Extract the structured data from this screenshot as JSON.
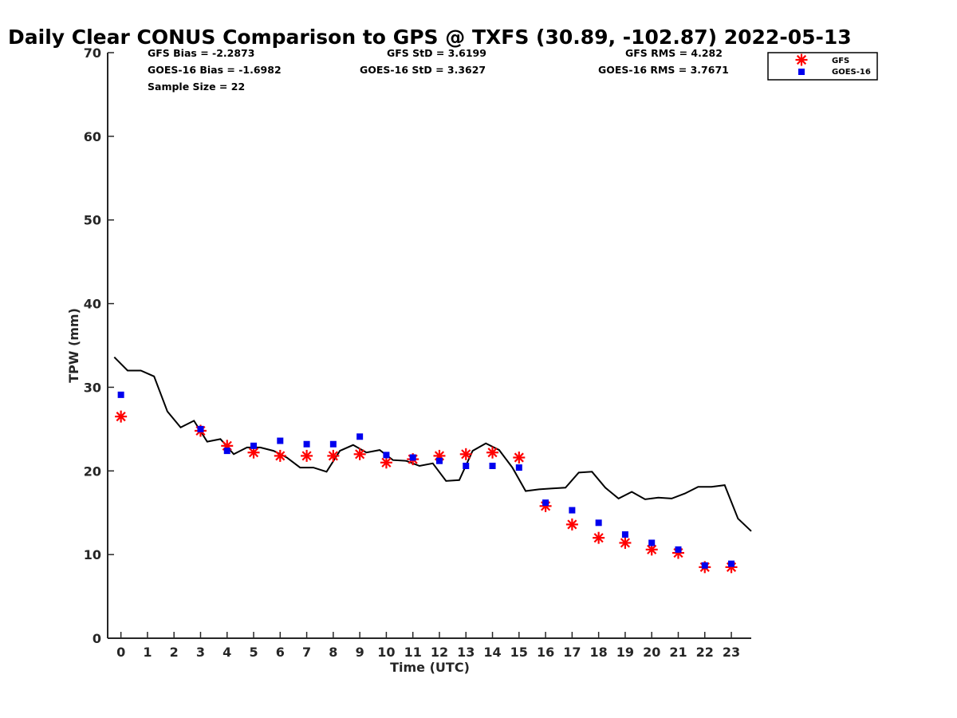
{
  "chart_data": {
    "type": "scatter",
    "title": "Daily Clear CONUS Comparison to GPS @ TXFS (30.89, -102.87) 2022-05-13",
    "xlabel": "Time (UTC)",
    "ylabel": "TPW (mm)",
    "xlim": [
      -0.5,
      23.75
    ],
    "ylim": [
      0,
      70
    ],
    "x_ticks": [
      0,
      1,
      2,
      3,
      4,
      5,
      6,
      7,
      8,
      9,
      10,
      11,
      12,
      13,
      14,
      15,
      16,
      17,
      18,
      19,
      20,
      21,
      22,
      23
    ],
    "y_ticks": [
      0,
      10,
      20,
      30,
      40,
      50,
      60,
      70
    ],
    "grid": false,
    "legend_position": "top-right",
    "stats": {
      "gfs_bias": "GFS Bias = -2.2873",
      "goes_bias": "GOES-16 Bias = -1.6982",
      "sample_size": "Sample Size = 22",
      "gfs_std": "GFS StD = 3.6199",
      "goes_std": "GOES-16 StD = 3.3627",
      "gfs_rms": "GFS RMS = 4.282",
      "goes_rms": "GOES-16 RMS = 3.7671"
    },
    "series": [
      {
        "name": "GFS",
        "marker": "asterisk",
        "color": "#ff0000",
        "x": [
          0,
          3,
          4,
          5,
          6,
          7,
          8,
          9,
          10,
          11,
          12,
          13,
          14,
          15,
          16,
          17,
          18,
          19,
          20,
          21,
          22,
          23
        ],
        "y": [
          26.5,
          24.8,
          23.0,
          22.2,
          21.8,
          21.8,
          21.8,
          22.0,
          21.0,
          21.4,
          21.8,
          22.0,
          22.2,
          21.6,
          15.8,
          13.6,
          12.0,
          11.4,
          10.6,
          10.2,
          8.5,
          8.5
        ]
      },
      {
        "name": "GOES-16",
        "marker": "square",
        "color": "#0000ee",
        "x": [
          0,
          3,
          4,
          5,
          6,
          7,
          8,
          9,
          10,
          11,
          12,
          13,
          14,
          15,
          16,
          17,
          18,
          19,
          20,
          21,
          22,
          23
        ],
        "y": [
          29.1,
          25.0,
          22.4,
          23.0,
          23.6,
          23.2,
          23.2,
          24.1,
          21.9,
          21.6,
          21.2,
          20.6,
          20.6,
          20.4,
          16.2,
          15.3,
          13.8,
          12.4,
          11.4,
          10.6,
          8.7,
          8.9
        ]
      },
      {
        "name": "GPS",
        "marker": "line",
        "color": "#000000",
        "x": [
          -0.25,
          0.25,
          0.75,
          1.25,
          1.75,
          2.25,
          2.75,
          3.25,
          3.75,
          4.25,
          4.75,
          5.25,
          5.75,
          6.25,
          6.75,
          7.25,
          7.75,
          8.25,
          8.75,
          9.25,
          9.75,
          10.25,
          10.75,
          11.25,
          11.75,
          12.25,
          12.75,
          13.25,
          13.75,
          14.25,
          14.75,
          15.25,
          15.75,
          16.25,
          16.75,
          17.25,
          17.75,
          18.25,
          18.75,
          19.25,
          19.75,
          20.25,
          20.75,
          21.25,
          21.75,
          22.25,
          22.75,
          23.25,
          23.75
        ],
        "y": [
          33.6,
          32.0,
          32.0,
          31.3,
          27.1,
          25.2,
          26.0,
          23.5,
          23.8,
          22.0,
          22.8,
          22.8,
          22.4,
          21.6,
          20.4,
          20.4,
          19.9,
          22.4,
          23.1,
          22.2,
          22.5,
          21.3,
          21.2,
          20.6,
          20.9,
          18.8,
          18.9,
          22.4,
          23.3,
          22.5,
          20.4,
          17.6,
          17.8,
          17.9,
          18.0,
          19.8,
          19.9,
          18.0,
          16.7,
          17.5,
          16.6,
          16.8,
          16.7,
          17.3,
          18.1,
          18.1,
          18.3,
          14.3,
          12.8
        ]
      }
    ]
  }
}
